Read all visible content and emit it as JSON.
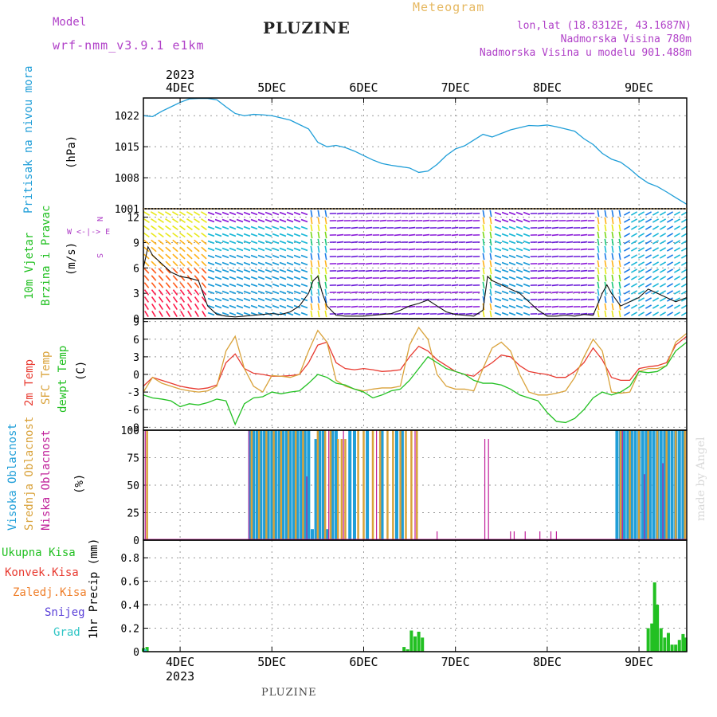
{
  "header": {
    "model_label": "Model",
    "model_name": "wrf-nmm_v3.9.1 e1km",
    "station": "PLUZINE",
    "meteogram": "Meteogram",
    "lonlat": "lon,lat (18.8312E, 43.1687N)",
    "elevation": "Nadmorska Visina 780m",
    "model_elevation": "Nadmorska Visina u modelu 901.488m"
  },
  "colors": {
    "pressure": "#1f9ed8",
    "temp2m": "#e83a30",
    "sfc_temp": "#d9a23a",
    "dewpoint": "#22c022",
    "cloud_high": "#1f9ed8",
    "cloud_mid": "#d9a23a",
    "cloud_low": "#c0209a",
    "precip_total": "#22c022",
    "precip_conv": "#e83a30",
    "precip_frozen": "#ef7f2a",
    "precip_snow": "#5a40d8",
    "precip_hail": "#2fc5c5",
    "wind_dir_label": "#b040c8",
    "watermark": "#d8d8d8"
  },
  "time_axis": {
    "year": "2023",
    "top_labels": [
      "4DEC",
      "5DEC",
      "6DEC",
      "7DEC",
      "8DEC",
      "9DEC"
    ],
    "bottom_labels": [
      "4DEC",
      "5DEC",
      "6DEC",
      "7DEC",
      "8DEC",
      "9DEC"
    ],
    "start_day": 3.6,
    "end_day": 9.52
  },
  "panels": {
    "pressure": {
      "label": "Pritisak na nivou mora",
      "unit": "(hPa)",
      "ticks": [
        "1022",
        "1015",
        "1008",
        "1001"
      ]
    },
    "wind": {
      "label1": "10m Vjetar",
      "label2": "Brzina i Pravac",
      "unit": "(m/s)",
      "ticks": [
        "12",
        "9",
        "6",
        "3",
        "0"
      ],
      "compass": "W <-|-> E",
      "compass_ns": "N",
      "compass_sn": "S"
    },
    "temperature": {
      "label1": "2m Temp",
      "label2": "SFC Temp",
      "label3": "dewpt Temp",
      "unit": "(C)",
      "ticks": [
        "9",
        "6",
        "3",
        "0",
        "-3",
        "-6",
        "-9"
      ]
    },
    "cloud": {
      "label1": "Visoka Oblacnost",
      "label2": "Srednja Oblacnost",
      "label3": "Niska Oblacnost",
      "unit": "(%)",
      "ticks": [
        "100",
        "75",
        "50",
        "25",
        "0"
      ]
    },
    "precip": {
      "label": "1hr Precip (mm)",
      "ticks": [
        "0.8",
        "0.6",
        "0.4",
        "0.2",
        "0"
      ],
      "legend": [
        "Ukupna Kisa",
        "Konvek.Kisa",
        "Zaledj.Kisa",
        "Snijeg",
        "Grad"
      ]
    }
  },
  "footer": {
    "station": "PLUZINE",
    "watermark": "made by Angel"
  },
  "chart_data": [
    {
      "type": "line",
      "name": "pressure",
      "ylabel": "(hPa)",
      "ylim": [
        1001,
        1026
      ],
      "x": [
        3.6,
        3.7,
        3.8,
        3.9,
        4.0,
        4.1,
        4.2,
        4.3,
        4.4,
        4.5,
        4.6,
        4.7,
        4.8,
        4.9,
        5.0,
        5.1,
        5.2,
        5.3,
        5.4,
        5.5,
        5.6,
        5.7,
        5.8,
        5.9,
        6.0,
        6.1,
        6.2,
        6.3,
        6.4,
        6.5,
        6.6,
        6.7,
        6.8,
        6.9,
        7.0,
        7.1,
        7.2,
        7.3,
        7.4,
        7.5,
        7.6,
        7.7,
        7.8,
        7.9,
        8.0,
        8.1,
        8.2,
        8.3,
        8.4,
        8.5,
        8.6,
        8.7,
        8.8,
        8.9,
        9.0,
        9.1,
        9.2,
        9.3,
        9.4,
        9.52
      ],
      "values": [
        1022,
        1021.8,
        1023,
        1024,
        1025,
        1025.8,
        1025.9,
        1025.9,
        1025.6,
        1024,
        1022.5,
        1022,
        1022.3,
        1022.2,
        1022,
        1021.5,
        1021,
        1020,
        1019,
        1016,
        1015,
        1015.3,
        1014.8,
        1014,
        1013,
        1012,
        1011.2,
        1010.8,
        1010.5,
        1010.2,
        1009.2,
        1009.5,
        1011,
        1013,
        1014.5,
        1015.2,
        1016.5,
        1017.8,
        1017.2,
        1018,
        1018.8,
        1019.3,
        1019.8,
        1019.7,
        1019.9,
        1019.5,
        1019,
        1018.5,
        1016.8,
        1015.5,
        1013.5,
        1012.2,
        1011.5,
        1010,
        1008.2,
        1006.8,
        1006,
        1004.8,
        1003.5,
        1002
      ]
    },
    {
      "type": "line",
      "name": "wind_speed",
      "ylabel": "(m/s)",
      "ylim": [
        0,
        13
      ],
      "x": [
        3.6,
        3.65,
        3.7,
        3.8,
        3.9,
        4.0,
        4.1,
        4.2,
        4.25,
        4.3,
        4.4,
        4.5,
        4.6,
        4.7,
        4.8,
        4.9,
        5.0,
        5.1,
        5.2,
        5.3,
        5.4,
        5.45,
        5.5,
        5.55,
        5.6,
        5.7,
        5.8,
        5.9,
        6.0,
        6.1,
        6.2,
        6.3,
        6.4,
        6.5,
        6.6,
        6.7,
        6.8,
        6.9,
        7.0,
        7.1,
        7.2,
        7.3,
        7.35,
        7.4,
        7.5,
        7.6,
        7.7,
        7.8,
        7.9,
        8.0,
        8.1,
        8.2,
        8.3,
        8.4,
        8.5,
        8.6,
        8.65,
        8.7,
        8.8,
        8.9,
        9.0,
        9.1,
        9.2,
        9.3,
        9.4,
        9.52
      ],
      "values": [
        6,
        8.5,
        7.5,
        6.5,
        5.5,
        5,
        4.8,
        4.5,
        3,
        1.5,
        0.5,
        0.3,
        0.2,
        0.3,
        0.4,
        0.5,
        0.6,
        0.5,
        0.8,
        1.5,
        3,
        4.5,
        5,
        3,
        1.5,
        0.4,
        0.3,
        0.3,
        0.3,
        0.4,
        0.5,
        0.6,
        1,
        1.5,
        1.8,
        2.2,
        1.5,
        0.8,
        0.5,
        0.4,
        0.3,
        1,
        5,
        4.5,
        4,
        3.5,
        3,
        2,
        1,
        0.3,
        0.3,
        0.4,
        0.3,
        0.5,
        0.4,
        3,
        4,
        3,
        1.5,
        2,
        2.5,
        3.5,
        3,
        2.5,
        2,
        2.5
      ]
    },
    {
      "type": "line",
      "name": "temperature",
      "ylabel": "(C)",
      "ylim": [
        -9.5,
        9.5
      ],
      "x": [
        3.6,
        3.7,
        3.8,
        3.9,
        4.0,
        4.1,
        4.2,
        4.3,
        4.4,
        4.5,
        4.6,
        4.7,
        4.8,
        4.9,
        5.0,
        5.1,
        5.2,
        5.3,
        5.4,
        5.5,
        5.6,
        5.7,
        5.8,
        5.9,
        6.0,
        6.1,
        6.2,
        6.3,
        6.4,
        6.5,
        6.6,
        6.7,
        6.8,
        6.9,
        7.0,
        7.1,
        7.2,
        7.3,
        7.4,
        7.5,
        7.6,
        7.7,
        7.8,
        7.9,
        8.0,
        8.1,
        8.2,
        8.3,
        8.4,
        8.5,
        8.6,
        8.7,
        8.8,
        8.9,
        9.0,
        9.1,
        9.2,
        9.3,
        9.4,
        9.52
      ],
      "series": [
        {
          "key": "temp2m",
          "values": [
            -2,
            -0.5,
            -1,
            -1.5,
            -2,
            -2.3,
            -2.5,
            -2.3,
            -1.8,
            2,
            3.5,
            1,
            0.2,
            0,
            -0.3,
            -0.3,
            -0.2,
            0,
            2,
            5,
            5.5,
            2,
            1,
            0.8,
            1,
            0.8,
            0.5,
            0.6,
            0.8,
            3,
            4.8,
            4,
            2.5,
            1.5,
            0.5,
            0,
            -0.3,
            1,
            2,
            3.3,
            3,
            1.5,
            0.5,
            0.2,
            0,
            -0.5,
            -0.5,
            0.5,
            2,
            4.5,
            2.5,
            -0.5,
            -1,
            -1,
            1,
            1.3,
            1.5,
            2,
            5,
            6.5
          ]
        },
        {
          "key": "sfc_temp",
          "values": [
            -3,
            -0.5,
            -1.5,
            -2,
            -2.5,
            -2.8,
            -3,
            -2.8,
            -2,
            4,
            6.5,
            1,
            -2,
            -3,
            -0.2,
            -0.3,
            -0.5,
            0,
            4,
            7.5,
            5.5,
            -1,
            -2,
            -2.5,
            -2.8,
            -2.5,
            -2.3,
            -2.3,
            -2,
            5,
            8,
            6,
            0,
            -2,
            -2.5,
            -2.5,
            -2.8,
            1,
            4.5,
            5.5,
            4,
            0,
            -3,
            -3.5,
            -3.5,
            -3.2,
            -2.8,
            -0.5,
            3,
            6,
            4,
            -3,
            -3.2,
            -3,
            0.5,
            1,
            1,
            1.5,
            5.5,
            7
          ]
        },
        {
          "key": "dewpoint",
          "values": [
            -3.5,
            -4,
            -4.2,
            -4.5,
            -5.5,
            -5,
            -5.2,
            -4.8,
            -4.2,
            -4.5,
            -8.5,
            -5,
            -4,
            -3.8,
            -3,
            -3.3,
            -3,
            -2.8,
            -1.5,
            0,
            -0.5,
            -1.5,
            -1.8,
            -2.5,
            -3,
            -4,
            -3.5,
            -2.8,
            -2.5,
            -1,
            1,
            3,
            2,
            1,
            0.5,
            0,
            -1,
            -1.5,
            -1.5,
            -1.8,
            -2.5,
            -3.5,
            -4,
            -4.5,
            -6.5,
            -8,
            -8.2,
            -7.5,
            -6,
            -4,
            -3,
            -3.5,
            -3,
            -2,
            0.5,
            0.3,
            0.5,
            1.5,
            4,
            5.5
          ]
        }
      ]
    },
    {
      "type": "bar",
      "name": "cloud_cover",
      "ylabel": "(%)",
      "ylim": [
        0,
        100
      ],
      "series": [
        {
          "key": "cloud_high",
          "bars": [
            [
              4.76,
              100
            ],
            [
              4.8,
              100
            ],
            [
              4.84,
              100
            ],
            [
              4.88,
              100
            ],
            [
              4.92,
              100
            ],
            [
              4.96,
              100
            ],
            [
              5.0,
              100
            ],
            [
              5.04,
              100
            ],
            [
              5.08,
              100
            ],
            [
              5.12,
              100
            ],
            [
              5.16,
              100
            ],
            [
              5.2,
              100
            ],
            [
              5.24,
              100
            ],
            [
              5.28,
              100
            ],
            [
              5.32,
              100
            ],
            [
              5.36,
              100
            ],
            [
              5.4,
              100
            ],
            [
              5.44,
              10
            ],
            [
              5.48,
              92
            ],
            [
              5.52,
              100
            ],
            [
              5.56,
              100
            ],
            [
              5.6,
              10
            ],
            [
              5.66,
              100
            ],
            [
              5.7,
              100
            ],
            [
              5.85,
              100
            ],
            [
              5.9,
              100
            ],
            [
              6.04,
              100
            ],
            [
              6.2,
              100
            ],
            [
              6.36,
              100
            ],
            [
              6.42,
              100
            ],
            [
              8.76,
              100
            ],
            [
              8.8,
              100
            ],
            [
              8.84,
              100
            ],
            [
              8.88,
              100
            ],
            [
              8.92,
              100
            ],
            [
              8.96,
              100
            ],
            [
              9.0,
              100
            ],
            [
              9.04,
              100
            ],
            [
              9.08,
              100
            ],
            [
              9.12,
              100
            ],
            [
              9.16,
              100
            ],
            [
              9.2,
              100
            ],
            [
              9.24,
              100
            ],
            [
              9.28,
              100
            ],
            [
              9.32,
              100
            ],
            [
              9.36,
              100
            ],
            [
              9.4,
              100
            ],
            [
              9.44,
              100
            ],
            [
              9.48,
              100
            ]
          ]
        },
        {
          "key": "cloud_mid",
          "bars": [
            [
              3.64,
              100
            ],
            [
              4.78,
              100
            ],
            [
              4.86,
              100
            ],
            [
              4.94,
              100
            ],
            [
              5.02,
              100
            ],
            [
              5.1,
              100
            ],
            [
              5.18,
              100
            ],
            [
              5.26,
              100
            ],
            [
              5.34,
              100
            ],
            [
              5.5,
              100
            ],
            [
              5.58,
              100
            ],
            [
              5.64,
              100
            ],
            [
              5.72,
              92
            ],
            [
              5.76,
              92
            ],
            [
              5.8,
              92
            ],
            [
              5.94,
              100
            ],
            [
              6.0,
              100
            ],
            [
              6.1,
              100
            ],
            [
              6.18,
              100
            ],
            [
              6.26,
              100
            ],
            [
              6.32,
              100
            ],
            [
              6.4,
              100
            ],
            [
              6.46,
              100
            ],
            [
              6.52,
              100
            ],
            [
              6.58,
              100
            ],
            [
              8.8,
              100
            ],
            [
              8.9,
              100
            ],
            [
              9.0,
              100
            ],
            [
              9.1,
              100
            ],
            [
              9.2,
              100
            ],
            [
              9.3,
              100
            ],
            [
              9.4,
              100
            ],
            [
              9.5,
              100
            ]
          ]
        },
        {
          "key": "cloud_low",
          "bars": [
            [
              3.62,
              100
            ],
            [
              4.75,
              100
            ],
            [
              5.38,
              58
            ],
            [
              5.62,
              100
            ],
            [
              5.78,
              100
            ],
            [
              6.14,
              100
            ],
            [
              6.56,
              100
            ],
            [
              6.8,
              8
            ],
            [
              7.32,
              92
            ],
            [
              7.36,
              92
            ],
            [
              7.6,
              8
            ],
            [
              7.64,
              8
            ],
            [
              7.76,
              8
            ],
            [
              7.92,
              8
            ],
            [
              8.04,
              8
            ],
            [
              8.1,
              8
            ],
            [
              8.82,
              100
            ],
            [
              9.06,
              60
            ],
            [
              9.26,
              70
            ]
          ]
        }
      ]
    },
    {
      "type": "bar",
      "name": "precipitation",
      "ylabel": "1hr Precip (mm)",
      "ylim": [
        0,
        0.95
      ],
      "series": [
        {
          "key": "precip_total",
          "bars": [
            [
              3.6,
              0.03
            ],
            [
              3.64,
              0.04
            ],
            [
              6.44,
              0.04
            ],
            [
              6.48,
              0.02
            ],
            [
              6.52,
              0.18
            ],
            [
              6.56,
              0.13
            ],
            [
              6.6,
              0.17
            ],
            [
              6.64,
              0.12
            ],
            [
              9.1,
              0.2
            ],
            [
              9.14,
              0.24
            ],
            [
              9.17,
              0.59
            ],
            [
              9.2,
              0.4
            ],
            [
              9.24,
              0.2
            ],
            [
              9.28,
              0.12
            ],
            [
              9.32,
              0.16
            ],
            [
              9.36,
              0.06
            ],
            [
              9.4,
              0.06
            ],
            [
              9.44,
              0.1
            ],
            [
              9.48,
              0.15
            ],
            [
              9.51,
              0.12
            ]
          ]
        },
        {
          "key": "precip_hail",
          "bars": [
            [
              3.62,
              0.02
            ]
          ]
        }
      ]
    }
  ]
}
